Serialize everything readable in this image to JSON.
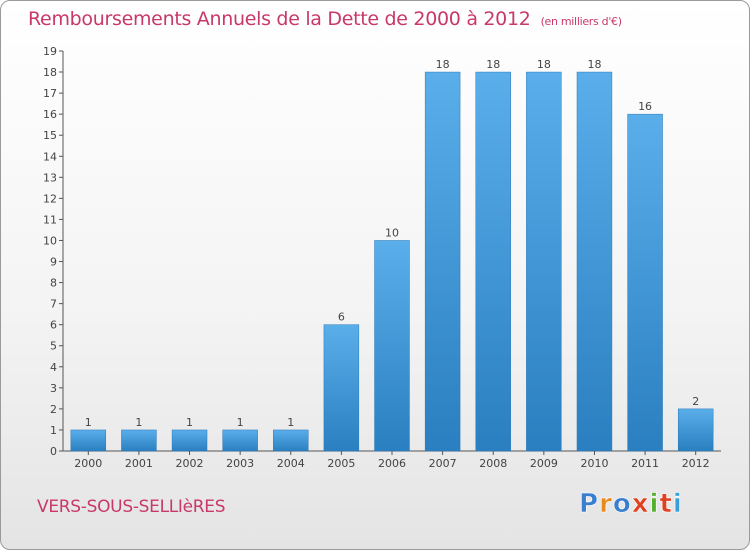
{
  "header": {
    "title": "Remboursements Annuels de la Dette de 2000 à 2012",
    "unit": "(en milliers d'€)"
  },
  "commune": "VERS-SOUS-SELLIèRES",
  "logo": {
    "text": "Proxiti",
    "letter_colors": [
      "#3a7fcf",
      "#e88a1a",
      "#3a7fcf",
      "#e04020",
      "#56b030",
      "#e04020",
      "#3a9fd8"
    ]
  },
  "colors": {
    "title": "#c8386a",
    "bar_light": "#5aaeea",
    "bar_dark": "#2a7fc0",
    "axis": "#555555"
  },
  "chart_data": {
    "type": "bar",
    "title": "Remboursements Annuels de la Dette de 2000 à 2012",
    "subtitle": "(en milliers d'€)",
    "categories": [
      "2000",
      "2001",
      "2002",
      "2003",
      "2004",
      "2005",
      "2006",
      "2007",
      "2008",
      "2009",
      "2010",
      "2011",
      "2012"
    ],
    "values": [
      1,
      1,
      1,
      1,
      1,
      6,
      10,
      18,
      18,
      18,
      18,
      16,
      2
    ],
    "ylim": [
      0,
      19
    ],
    "yticks": [
      0,
      1,
      2,
      3,
      4,
      5,
      6,
      7,
      8,
      9,
      10,
      11,
      12,
      13,
      14,
      15,
      16,
      17,
      18,
      19
    ],
    "grid": false,
    "legend": "none"
  }
}
